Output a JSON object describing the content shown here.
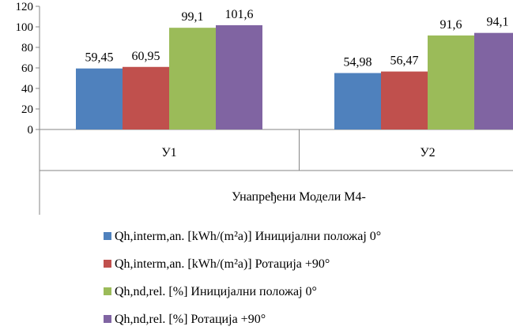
{
  "chart_data": {
    "type": "bar",
    "group_label": "Унапређени Модели М4-",
    "categories": [
      "У1",
      "У2"
    ],
    "series": [
      {
        "name": "Qh,interm,an. [kWh/(m²a)] Иницијални положај 0°",
        "values": [
          59.45,
          54.98
        ],
        "labels": [
          "59,45",
          "54,98"
        ],
        "color": "#4f81bd"
      },
      {
        "name": "Qh,interm,an. [kWh/(m²a)] Ротација +90°",
        "values": [
          60.95,
          56.47
        ],
        "labels": [
          "60,95",
          "56,47"
        ],
        "color": "#c0504d"
      },
      {
        "name": "Qh,nd,rel. [%] Иницијални положај 0°",
        "values": [
          99.1,
          91.6
        ],
        "labels": [
          "99,1",
          "91,6"
        ],
        "color": "#9bbb59"
      },
      {
        "name": "Qh,nd,rel. [%] Ротација +90°",
        "values": [
          101.6,
          94.1
        ],
        "labels": [
          "101,6",
          "94,1"
        ],
        "color": "#8064a2"
      }
    ],
    "ylim": [
      0,
      120
    ],
    "yticks": [
      0,
      20,
      40,
      60,
      80,
      100,
      120
    ],
    "grid": false,
    "legend_position": "bottom"
  }
}
